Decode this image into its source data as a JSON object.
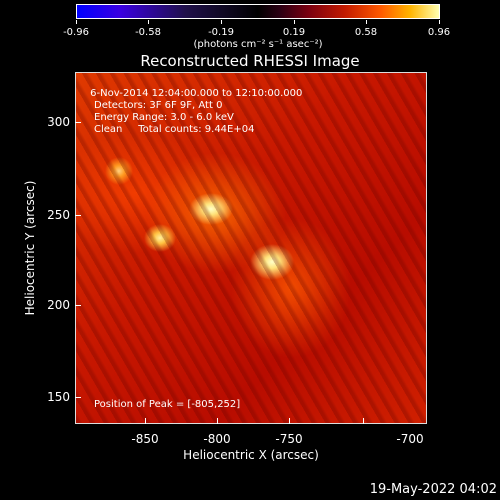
{
  "colorbar": {
    "tick_labels": [
      "-0.96",
      "-0.58",
      "-0.19",
      "0.19",
      "0.58",
      "0.96"
    ],
    "unit_label": "(photons cm⁻² s⁻¹ asec⁻²)"
  },
  "title": "Reconstructed RHESSI Image",
  "info_lines": {
    "line1": " 6-Nov-2014 12:04:00.000 to 12:10:00.000",
    "line2": "Detectors: 3F 6F 9F, Att 0",
    "line3": "Energy Range: 3.0 - 6.0 keV",
    "line4": "Clean     Total counts: 9.44E+04"
  },
  "peak_position": "Position of Peak = [-805,252]",
  "x_axis": {
    "label": "Heliocentric X (arcsec)",
    "tick_labels": [
      "-850",
      "-800",
      "-750",
      "-700"
    ]
  },
  "y_axis": {
    "label": "Heliocentric Y (arcsec)",
    "tick_labels": [
      "300",
      "250",
      "200",
      "150"
    ]
  },
  "datestamp": "19-May-2022 04:02"
}
